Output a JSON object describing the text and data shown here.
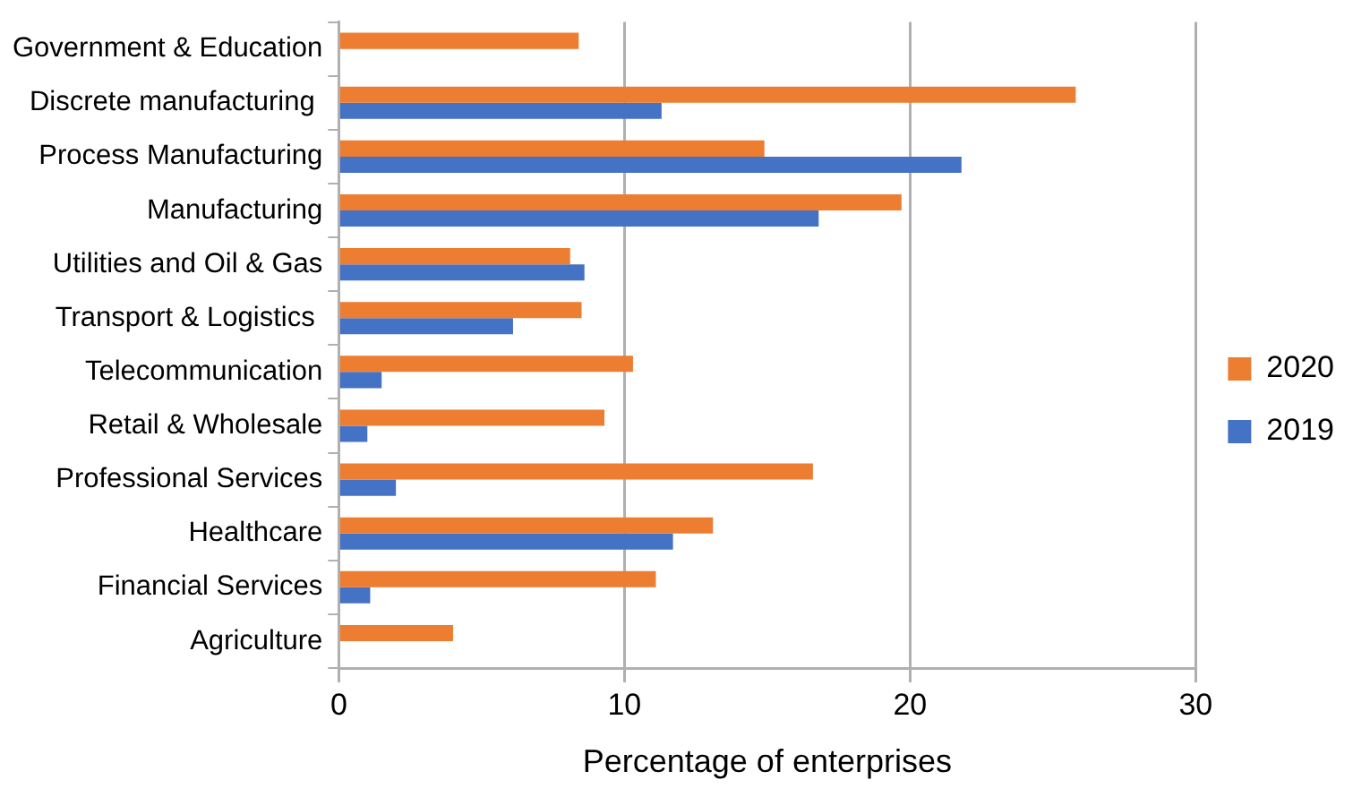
{
  "chart_data": {
    "type": "bar",
    "orientation": "horizontal",
    "xlabel": "Percentage of enterprises",
    "categories": [
      "Government & Education",
      "Discrete manufacturing ",
      "Process Manufacturing",
      "Manufacturing",
      "Utilities and Oil & Gas",
      "Transport & Logistics ",
      "Telecommunication",
      "Retail & Wholesale",
      "Professional Services",
      "Healthcare",
      "Financial Services",
      "Agriculture"
    ],
    "series": [
      {
        "name": "2020",
        "color": "#ed7d31",
        "values": [
          8.4,
          25.8,
          14.9,
          19.7,
          8.1,
          8.5,
          10.3,
          9.3,
          16.6,
          13.1,
          11.1,
          4.0
        ]
      },
      {
        "name": "2019",
        "color": "#4472c4",
        "values": [
          null,
          11.3,
          21.8,
          16.8,
          8.6,
          6.1,
          1.5,
          1.0,
          2.0,
          11.7,
          1.1,
          null
        ]
      }
    ],
    "xlim": [
      0,
      30
    ],
    "xticks": [
      0,
      10,
      20,
      30
    ],
    "grid": "x",
    "legend": "right"
  }
}
